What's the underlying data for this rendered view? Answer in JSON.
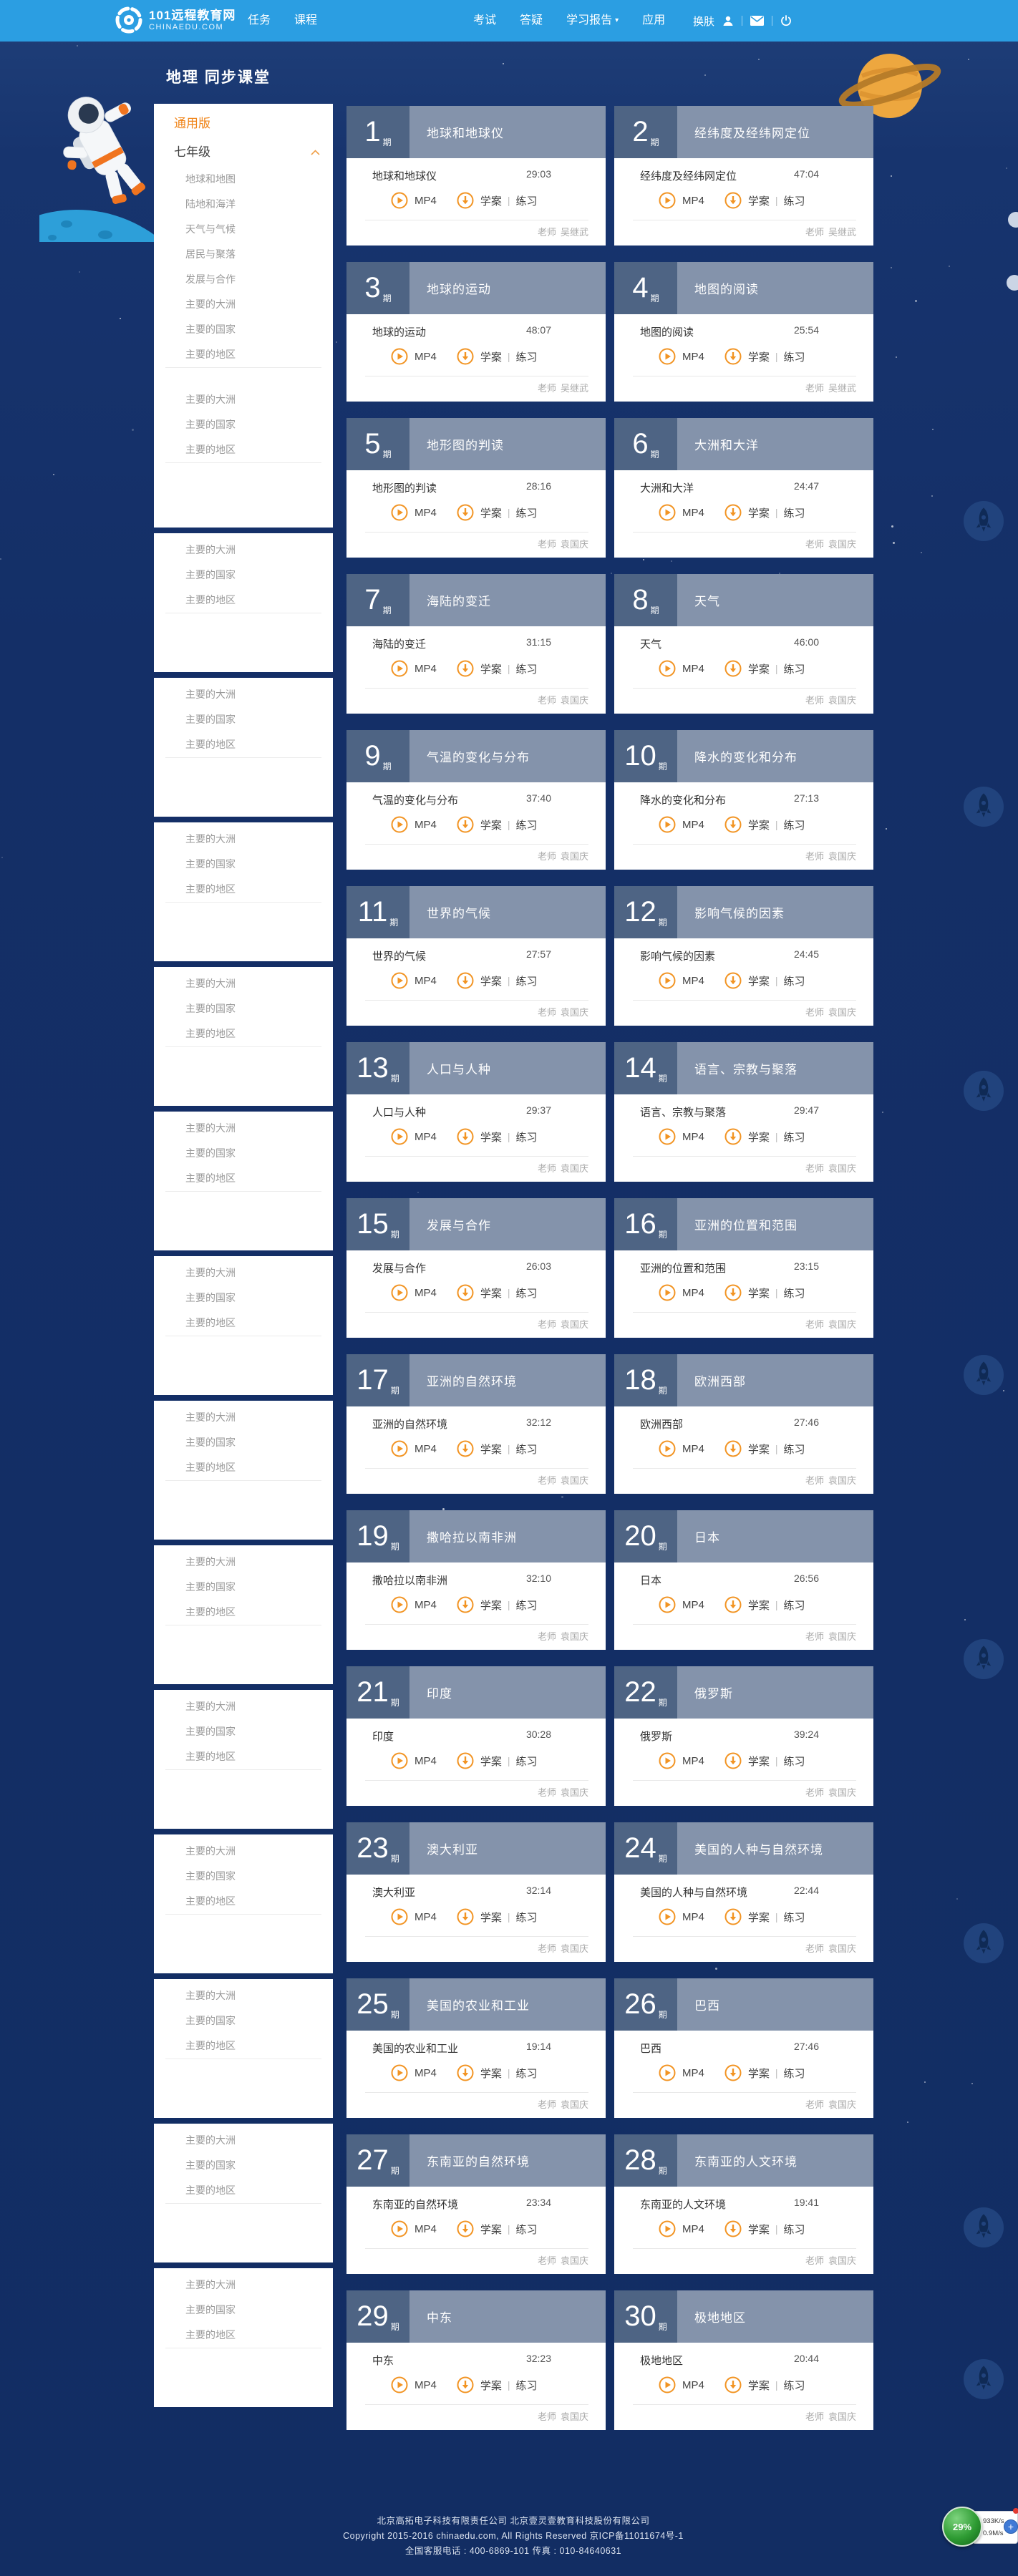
{
  "header": {
    "logo": {
      "line1": "101远程教育网",
      "line2": "CHINAEDU.COM"
    },
    "nav": [
      "任务",
      "课程",
      "考试",
      "答疑",
      "学习报告",
      "应用"
    ],
    "app_caret": "▾",
    "skin_label": "换肤"
  },
  "page": {
    "title": "地理 同步课堂"
  },
  "sidebar": {
    "edition_label": "通用版",
    "grade_label": "七年级",
    "grade_expanded": true,
    "grade_items": [
      "地球和地图",
      "陆地和海洋",
      "天气与气候",
      "居民与聚落",
      "发展与合作",
      "主要的大洲",
      "主要的国家",
      "主要的地区"
    ],
    "extra_group_items": [
      "主要的大洲",
      "主要的国家",
      "主要的地区"
    ],
    "repeat_group_items": [
      "主要的大洲",
      "主要的国家",
      "主要的地区"
    ],
    "repeat_box_count": 13
  },
  "lessons": {
    "issue_suffix": "期",
    "teacher_prefix": "老师",
    "play_label": "MP4",
    "doc_label": "学案",
    "pipe": "|",
    "practice_label": "练习",
    "cards": [
      {
        "num": "1",
        "title": "地球和地球仪",
        "duration": "29:03",
        "teacher": "吴继武"
      },
      {
        "num": "2",
        "title": "经纬度及经纬网定位",
        "duration": "47:04",
        "teacher": "吴继武"
      },
      {
        "num": "3",
        "title": "地球的运动",
        "duration": "48:07",
        "teacher": "吴继武"
      },
      {
        "num": "4",
        "title": "地图的阅读",
        "duration": "25:54",
        "teacher": "吴继武"
      },
      {
        "num": "5",
        "title": "地形图的判读",
        "duration": "28:16",
        "teacher": "袁国庆"
      },
      {
        "num": "6",
        "title": "大洲和大洋",
        "duration": "24:47",
        "teacher": "袁国庆"
      },
      {
        "num": "7",
        "title": "海陆的变迁",
        "duration": "31:15",
        "teacher": "袁国庆"
      },
      {
        "num": "8",
        "title": "天气",
        "duration": "46:00",
        "teacher": "袁国庆"
      },
      {
        "num": "9",
        "title": "气温的变化与分布",
        "duration": "37:40",
        "teacher": "袁国庆"
      },
      {
        "num": "10",
        "title": "降水的变化和分布",
        "duration": "27:13",
        "teacher": "袁国庆"
      },
      {
        "num": "11",
        "title": "世界的气候",
        "duration": "27:57",
        "teacher": "袁国庆"
      },
      {
        "num": "12",
        "title": "影响气候的因素",
        "duration": "24:45",
        "teacher": "袁国庆"
      },
      {
        "num": "13",
        "title": "人口与人种",
        "duration": "29:37",
        "teacher": "袁国庆"
      },
      {
        "num": "14",
        "title": "语言、宗教与聚落",
        "duration": "29:47",
        "teacher": "袁国庆"
      },
      {
        "num": "15",
        "title": "发展与合作",
        "duration": "26:03",
        "teacher": "袁国庆"
      },
      {
        "num": "16",
        "title": "亚洲的位置和范围",
        "duration": "23:15",
        "teacher": "袁国庆"
      },
      {
        "num": "17",
        "title": "亚洲的自然环境",
        "duration": "32:12",
        "teacher": "袁国庆"
      },
      {
        "num": "18",
        "title": "欧洲西部",
        "duration": "27:46",
        "teacher": "袁国庆"
      },
      {
        "num": "19",
        "title": "撒哈拉以南非洲",
        "duration": "32:10",
        "teacher": "袁国庆"
      },
      {
        "num": "20",
        "title": "日本",
        "duration": "26:56",
        "teacher": "袁国庆"
      },
      {
        "num": "21",
        "title": "印度",
        "duration": "30:28",
        "teacher": "袁国庆"
      },
      {
        "num": "22",
        "title": "俄罗斯",
        "duration": "39:24",
        "teacher": "袁国庆"
      },
      {
        "num": "23",
        "title": "澳大利亚",
        "duration": "32:14",
        "teacher": "袁国庆"
      },
      {
        "num": "24",
        "title": "美国的人种与自然环境",
        "duration": "22:44",
        "teacher": "袁国庆"
      },
      {
        "num": "25",
        "title": "美国的农业和工业",
        "duration": "19:14",
        "teacher": "袁国庆"
      },
      {
        "num": "26",
        "title": "巴西",
        "duration": "27:46",
        "teacher": "袁国庆"
      },
      {
        "num": "27",
        "title": "东南亚的自然环境",
        "duration": "23:34",
        "teacher": "袁国庆"
      },
      {
        "num": "28",
        "title": "东南亚的人文环境",
        "duration": "19:41",
        "teacher": "袁国庆"
      },
      {
        "num": "29",
        "title": "中东",
        "duration": "32:23",
        "teacher": "袁国庆"
      },
      {
        "num": "30",
        "title": "极地地区",
        "duration": "20:44",
        "teacher": "袁国庆"
      }
    ]
  },
  "floating_widget": {
    "progress": "29%",
    "up_speed": "933K/s",
    "down_speed": "0.9M/s"
  },
  "footer": {
    "line1": "北京高拓电子科技有限责任公司 北京壹灵壹教育科技股份有限公司",
    "line2": "Copyright 2015-2016 chinaedu.com, All Rights Reserved 京ICP备11011674号-1",
    "line3": "全国客服电话 : 400-6869-101 传真 : 010-84640631"
  },
  "colors": {
    "header_bg": "#2b9ee2",
    "page_bg": "#142f67",
    "accent_orange": "#f18c1f",
    "card_num_bg": "#4e6484",
    "card_band_bg": "#8493ab",
    "widget_green": "#2e9b33",
    "up_red": "#e23b32",
    "down_green": "#34a53a"
  }
}
